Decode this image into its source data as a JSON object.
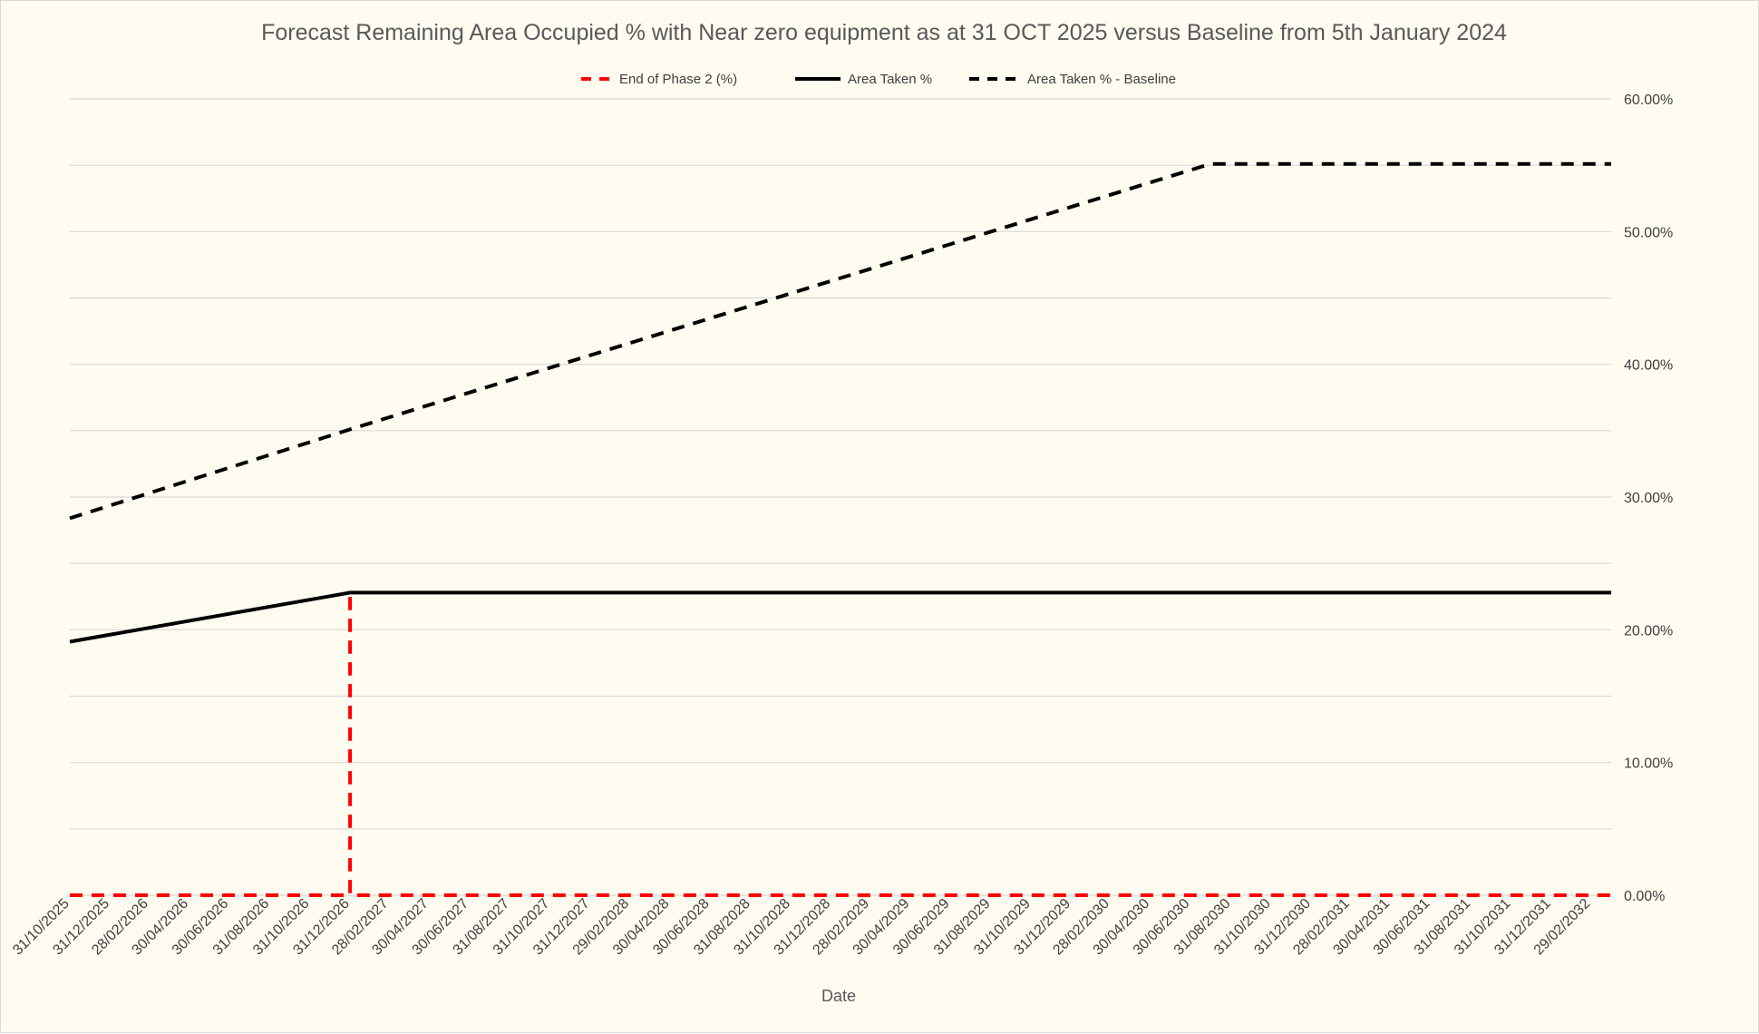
{
  "chart_data": {
    "type": "line",
    "title": "Forecast Remaining Area Occupied % with Near zero equipment as at 31 OCT 2025 versus Baseline from 5th January 2024",
    "xlabel": "Date",
    "ylabel": "",
    "y_axis_position": "right",
    "ylim": [
      0,
      60
    ],
    "y_ticks": [
      "0.00%",
      "10.00%",
      "20.00%",
      "30.00%",
      "40.00%",
      "50.00%",
      "60.00%"
    ],
    "grid": true,
    "legend_position": "top",
    "categories": [
      "31/10/2025",
      "31/12/2025",
      "28/02/2026",
      "30/04/2026",
      "30/06/2026",
      "31/08/2026",
      "31/10/2026",
      "31/12/2026",
      "28/02/2027",
      "30/04/2027",
      "30/06/2027",
      "31/08/2027",
      "31/10/2027",
      "31/12/2027",
      "29/02/2028",
      "30/04/2028",
      "30/06/2028",
      "31/08/2028",
      "31/10/2028",
      "31/12/2028",
      "28/02/2029",
      "30/04/2029",
      "30/06/2029",
      "31/08/2029",
      "31/10/2029",
      "31/12/2029",
      "28/02/2030",
      "30/04/2030",
      "30/06/2030",
      "31/08/2030",
      "31/10/2030",
      "31/12/2030",
      "28/02/2031",
      "30/04/2031",
      "30/06/2031",
      "31/08/2031",
      "31/10/2031",
      "31/12/2031",
      "29/02/2032"
    ],
    "x_range": [
      "31/10/2025",
      "31/03/2032"
    ],
    "series": [
      {
        "name": "End of Phase 2 (%)",
        "color": "#ff0000",
        "dash": "dashed",
        "points": [
          {
            "x": "31/10/2025",
            "y": 0
          },
          {
            "x": "31/12/2026",
            "y": 0
          },
          {
            "x": "31/12/2026",
            "y": 22.8
          },
          {
            "x": "31/12/2026",
            "y": 0
          },
          {
            "x": "31/03/2032",
            "y": 0
          }
        ]
      },
      {
        "name": "Area Taken %",
        "color": "#000000",
        "dash": "solid",
        "points": [
          {
            "x": "31/10/2025",
            "y": 19.1
          },
          {
            "x": "31/12/2026",
            "y": 22.8
          },
          {
            "x": "31/03/2032",
            "y": 22.8
          }
        ]
      },
      {
        "name": "Area Taken % - Baseline",
        "color": "#000000",
        "dash": "dashed",
        "points": [
          {
            "x": "31/10/2025",
            "y": 28.4
          },
          {
            "x": "31/12/2026",
            "y": 35.1
          },
          {
            "x": "31/07/2030",
            "y": 55.1
          },
          {
            "x": "31/03/2032",
            "y": 55.1
          }
        ]
      }
    ]
  }
}
